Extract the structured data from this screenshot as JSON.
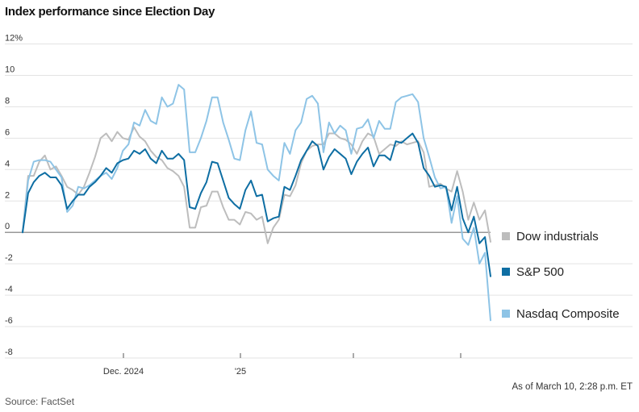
{
  "title": "Index performance since Election Day",
  "as_of": "As of March 10, 2:28 p.m. ET",
  "source": "Source: FactSet",
  "chart_data": {
    "type": "line",
    "title": "Index performance since Election Day",
    "xlabel": "",
    "ylabel": "",
    "ylim": [
      -8,
      12
    ],
    "yticks": [
      12,
      10,
      8,
      6,
      4,
      2,
      0,
      -2,
      -4,
      -6,
      -8
    ],
    "ytick_labels": [
      "12%",
      "10",
      "8",
      "6",
      "4",
      "2",
      "0",
      "-2",
      "-4",
      "-6",
      "-8"
    ],
    "xticks": [
      "Dec. 2024",
      "'25",
      "",
      ""
    ],
    "grid": true,
    "legend": "right",
    "series": [
      {
        "name": "Dow industrials",
        "color": "#bdbdbd",
        "values": [
          0,
          3.6,
          3.6,
          4.5,
          4.9,
          4.0,
          4.2,
          3.6,
          2.9,
          2.7,
          2.4,
          2.9,
          3.8,
          4.8,
          6.0,
          6.3,
          5.8,
          6.4,
          6.0,
          5.9,
          6.7,
          6.1,
          5.8,
          5.2,
          4.8,
          4.6,
          4.1,
          3.9,
          3.6,
          2.9,
          0.3,
          0.3,
          1.6,
          1.7,
          2.6,
          2.6,
          1.6,
          0.8,
          0.8,
          0.5,
          1.3,
          1.2,
          0.8,
          1.0,
          -0.7,
          0.3,
          0.8,
          2.4,
          2.3,
          3.0,
          4.4,
          5.2,
          5.5,
          5.6,
          5.6,
          6.3,
          6.3,
          6.0,
          5.9,
          5.6,
          5.0,
          5.8,
          6.3,
          6.1,
          5.0,
          5.3,
          5.6,
          5.5,
          5.8,
          5.6,
          5.7,
          5.8,
          5.1,
          2.9,
          3.0,
          3.1,
          2.8,
          2.6,
          3.9,
          2.6,
          0.8,
          1.9,
          0.8,
          1.4,
          -0.6
        ]
      },
      {
        "name": "S&P 500",
        "color": "#0e6ea3",
        "values": [
          0,
          2.5,
          3.2,
          3.6,
          3.8,
          3.5,
          3.5,
          3.0,
          1.5,
          2.0,
          2.4,
          2.4,
          2.9,
          3.2,
          3.6,
          4.1,
          3.8,
          4.4,
          4.6,
          4.7,
          5.2,
          5.0,
          5.3,
          4.7,
          4.4,
          5.2,
          4.7,
          4.7,
          5.0,
          4.6,
          1.6,
          1.5,
          2.5,
          3.2,
          4.5,
          4.4,
          3.3,
          2.2,
          1.8,
          1.5,
          2.7,
          3.3,
          2.3,
          2.4,
          0.7,
          0.9,
          1.0,
          2.9,
          2.7,
          3.6,
          4.6,
          5.2,
          5.8,
          5.5,
          4.0,
          4.8,
          5.3,
          5.0,
          4.7,
          3.7,
          4.5,
          5.0,
          5.4,
          4.2,
          4.9,
          4.9,
          4.6,
          5.8,
          5.7,
          6.0,
          6.3,
          5.7,
          4.1,
          3.6,
          2.9,
          3.0,
          2.9,
          1.4,
          2.9,
          0.9,
          0,
          1.0,
          -0.7,
          -0.3,
          -2.8
        ]
      },
      {
        "name": "Nasdaq Composite",
        "color": "#8ec4e6",
        "values": [
          0,
          3.3,
          4.5,
          4.6,
          4.6,
          4.5,
          4.0,
          3.5,
          1.3,
          1.7,
          2.9,
          2.8,
          3.0,
          3.3,
          3.6,
          3.8,
          3.4,
          4.1,
          5.2,
          5.6,
          7.0,
          6.8,
          7.8,
          7.1,
          6.9,
          8.6,
          8.0,
          8.2,
          9.4,
          9.1,
          5.1,
          5.1,
          6.0,
          7.1,
          8.6,
          8.6,
          7.0,
          5.9,
          4.7,
          4.6,
          6.5,
          7.7,
          5.7,
          5.6,
          4.0,
          3.6,
          3.3,
          5.7,
          5.0,
          6.5,
          7.0,
          8.5,
          8.7,
          8.2,
          5.1,
          7.0,
          6.3,
          6.8,
          6.5,
          5.0,
          6.6,
          6.7,
          7.2,
          6.0,
          7.1,
          6.6,
          6.6,
          8.3,
          8.6,
          8.7,
          8.8,
          8.3,
          6.0,
          4.8,
          3.5,
          2.8,
          2.9,
          0.6,
          2.3,
          -0.4,
          -0.8,
          0.3,
          -2.0,
          -1.3,
          -5.6
        ]
      }
    ]
  }
}
